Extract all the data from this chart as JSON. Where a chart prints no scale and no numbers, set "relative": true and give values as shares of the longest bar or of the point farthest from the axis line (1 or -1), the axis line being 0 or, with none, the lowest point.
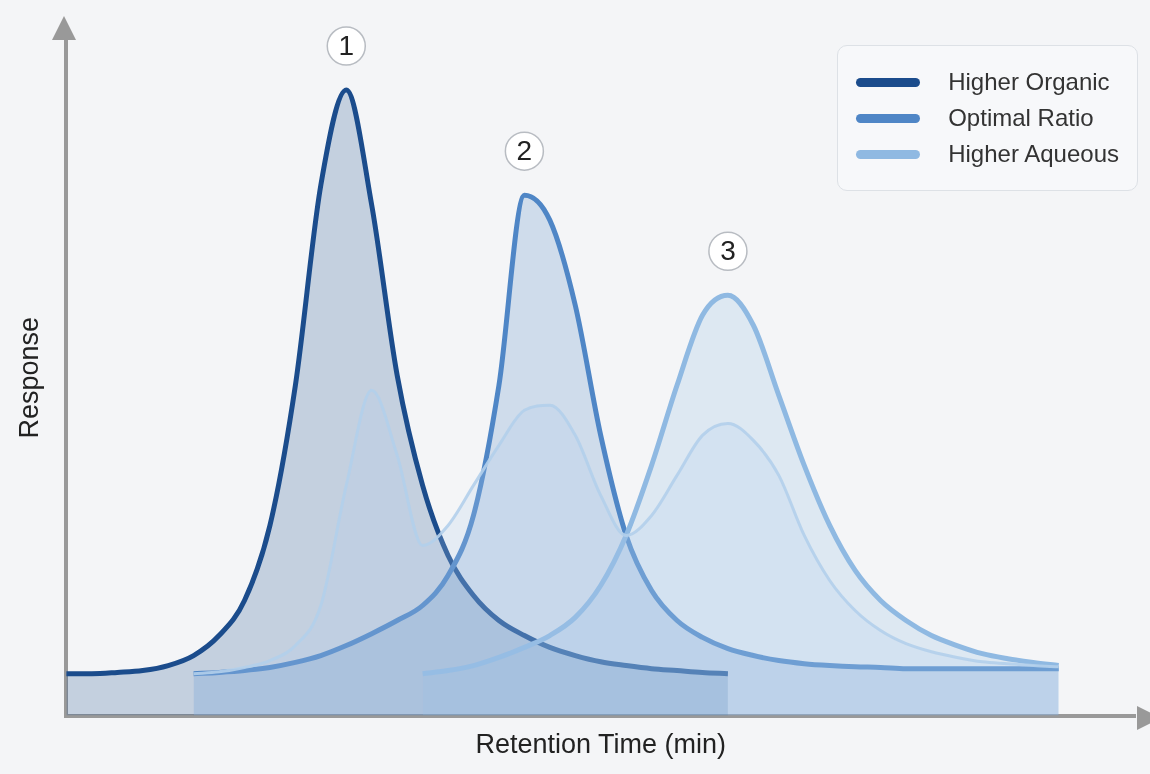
{
  "chart_data": {
    "type": "area",
    "relative": true,
    "legend": "top right",
    "xlabel": "Retention Time (min)",
    "ylabel": "Response",
    "categories": [
      null,
      null,
      null,
      null,
      null,
      null,
      null,
      null,
      null,
      null,
      null,
      null,
      null,
      null,
      null,
      null,
      null,
      null,
      null,
      null,
      null,
      null,
      null,
      null,
      null,
      null,
      null,
      null,
      null,
      null,
      null,
      null,
      null,
      null,
      null,
      null,
      null,
      null,
      null,
      null,
      null,
      null,
      null
    ],
    "series": [
      {
        "name": "Higher Organic",
        "color": "#1b4c8c",
        "values": [
          0.067,
          0.067,
          0.069,
          0.072,
          0.08,
          0.096,
          0.128,
          0.184,
          0.304,
          0.528,
          0.848,
          1,
          0.816,
          0.544,
          0.368,
          0.256,
          0.192,
          0.152,
          0.128,
          0.109,
          0.096,
          0.086,
          0.08,
          0.075,
          0.072,
          0.069,
          0.067,
          null,
          null,
          null,
          null,
          null,
          null,
          null,
          null,
          null,
          null,
          null,
          null,
          null,
          null,
          null,
          null
        ]
      },
      {
        "name": "Optimal Ratio",
        "color": "#4f86c6",
        "values": [
          null,
          null,
          null,
          null,
          null,
          0.067,
          0.069,
          0.072,
          0.077,
          0.085,
          0.096,
          0.112,
          0.131,
          0.152,
          0.176,
          0.224,
          0.32,
          0.528,
          0.832,
          0.792,
          0.656,
          0.448,
          0.288,
          0.2,
          0.152,
          0.125,
          0.107,
          0.096,
          0.088,
          0.083,
          0.08,
          0.078,
          0.077,
          0.075,
          0.075,
          0.075,
          0.075,
          0.075,
          0.075,
          0.075,
          null,
          null,
          null
        ]
      },
      {
        "name": "Higher Aqueous",
        "color": "#8fb9e2",
        "values": [
          null,
          null,
          null,
          null,
          null,
          null,
          null,
          null,
          null,
          null,
          null,
          null,
          null,
          null,
          0.067,
          0.072,
          0.08,
          0.093,
          0.109,
          0.128,
          0.157,
          0.208,
          0.288,
          0.4,
          0.528,
          0.64,
          0.672,
          0.624,
          0.512,
          0.4,
          0.304,
          0.232,
          0.184,
          0.152,
          0.128,
          0.112,
          0.099,
          0.091,
          0.085,
          0.08,
          null,
          null,
          null
        ]
      },
      {
        "color": "#b3cfeb",
        "values": [
          null,
          null,
          null,
          null,
          null,
          0.067,
          0.07,
          0.077,
          0.088,
          0.112,
          0.176,
          0.368,
          0.52,
          0.416,
          0.272,
          0.304,
          0.368,
          0.432,
          0.488,
          0.496,
          0.448,
          0.352,
          0.288,
          0.32,
          0.384,
          0.448,
          0.467,
          0.44,
          0.384,
          0.288,
          0.216,
          0.168,
          0.136,
          0.115,
          0.102,
          0.093,
          0.086,
          0.083,
          0.08,
          0.078,
          null,
          null,
          null
        ]
      }
    ],
    "annotations": [
      "1",
      "2",
      "3"
    ]
  }
}
